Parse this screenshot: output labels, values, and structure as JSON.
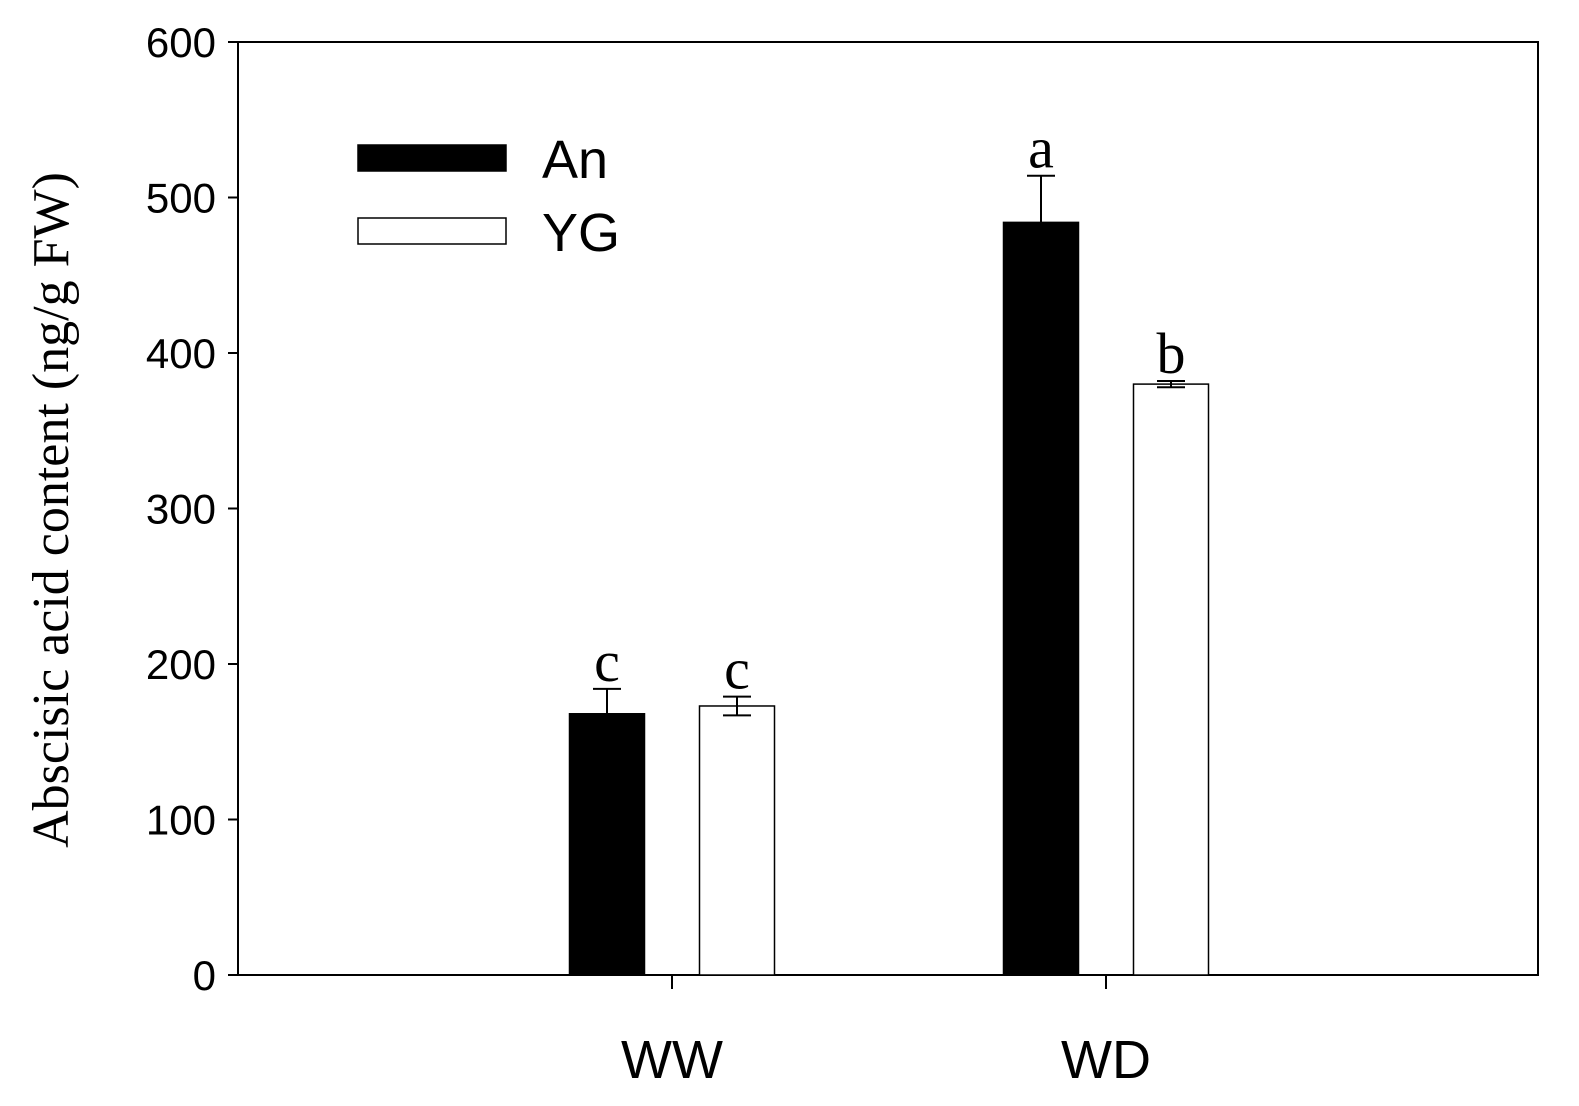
{
  "chart_data": {
    "type": "bar",
    "title": "",
    "xlabel": "",
    "ylabel": "Abscisic acid content (ng/g FW)",
    "ylim": [
      0,
      600
    ],
    "yticks": [
      0,
      100,
      200,
      300,
      400,
      500,
      600
    ],
    "categories": [
      "WW",
      "WD"
    ],
    "series": [
      {
        "name": "An",
        "color": "#000000",
        "values": [
          168,
          484
        ],
        "errors": [
          16,
          30
        ],
        "labels": [
          "c",
          "a"
        ]
      },
      {
        "name": "YG",
        "color": "#ffffff",
        "values": [
          173,
          380
        ],
        "errors": [
          6,
          2
        ],
        "labels": [
          "c",
          "b"
        ]
      }
    ],
    "legend_position": "top-left",
    "grid": false
  }
}
